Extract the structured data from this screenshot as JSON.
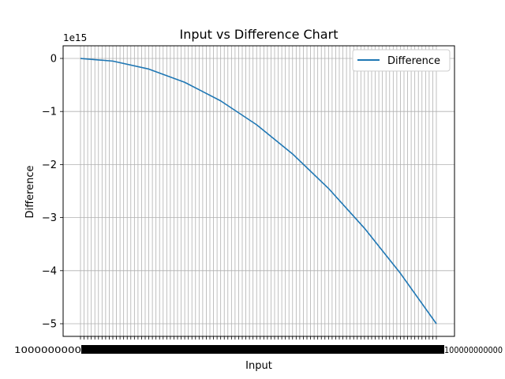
{
  "chart_data": {
    "type": "line",
    "title": "Input vs Difference Chart",
    "xlabel": "Input",
    "ylabel": "Difference",
    "y_offset_label": "1e15",
    "x_tick_label_left": "1000000000",
    "x_tick_label_right": "100000000000",
    "x_tick_count": 100,
    "y_ticks": [
      0,
      -1,
      -2,
      -3,
      -4,
      -5
    ],
    "y_tick_labels": [
      "0",
      "−1",
      "−2",
      "−3",
      "−4",
      "−5"
    ],
    "ylim": [
      -5.25,
      0.25
    ],
    "grid": true,
    "legend": {
      "position": "upper-right",
      "entries": [
        "Difference"
      ]
    },
    "series": [
      {
        "name": "Difference",
        "color": "#1f77b4",
        "x": [
          1,
          10,
          20,
          30,
          40,
          50,
          60,
          70,
          80,
          90,
          100
        ],
        "y": [
          -0.0005,
          -0.05,
          -0.2,
          -0.45,
          -0.8,
          -1.25,
          -1.8,
          -2.45,
          -3.2,
          -4.05,
          -5.0
        ]
      }
    ]
  }
}
